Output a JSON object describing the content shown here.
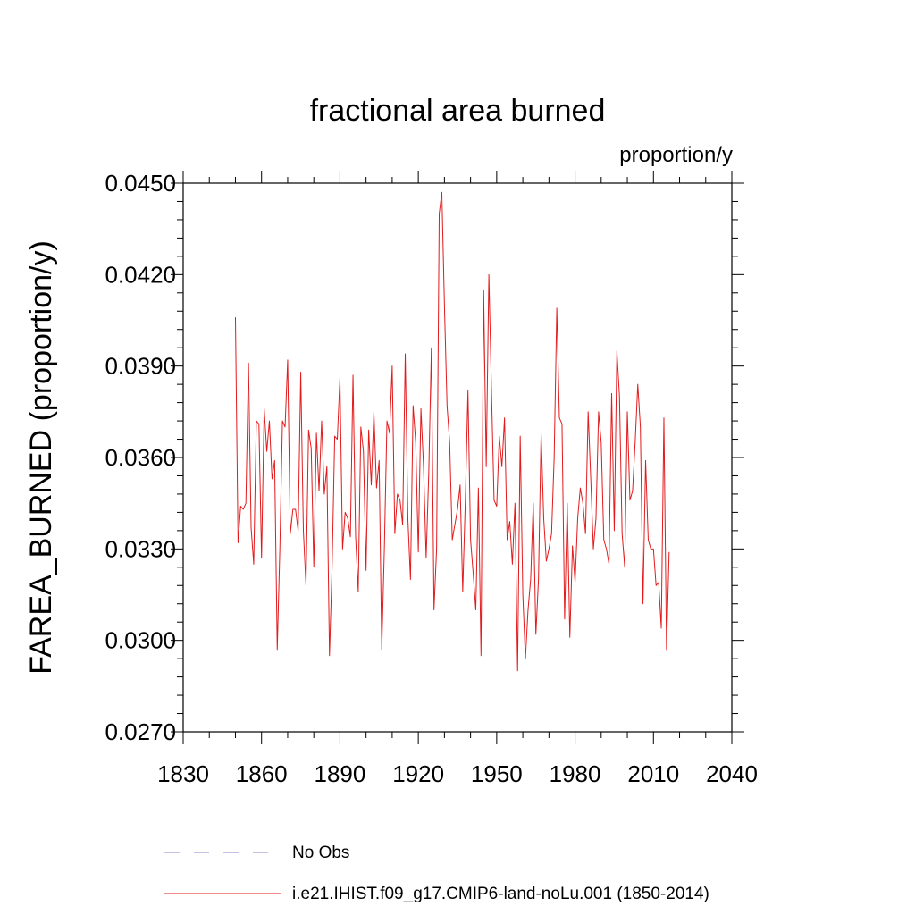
{
  "chart_data": {
    "type": "line",
    "title": "fractional area burned",
    "units": "proportion/y",
    "ylabel": "FAREA_BURNED  (proportion/y)",
    "xlabel": "",
    "xlim": [
      1830,
      2040
    ],
    "ylim": [
      0.027,
      0.045
    ],
    "x_ticks": [
      1830,
      1860,
      1890,
      1920,
      1950,
      1980,
      2010,
      2040
    ],
    "x_tick_labels": [
      "1830",
      "1860",
      "1890",
      "1920",
      "1950",
      "1980",
      "2010",
      "2040"
    ],
    "y_ticks": [
      0.027,
      0.03,
      0.033,
      0.036,
      0.039,
      0.042,
      0.045
    ],
    "y_tick_labels": [
      "0.0270",
      "0.0300",
      "0.0330",
      "0.0360",
      "0.0390",
      "0.0420",
      "0.0450"
    ],
    "grid": false,
    "legend_position": "bottom",
    "legend": [
      {
        "label": "No Obs",
        "color": "#8a84c8",
        "style": "dashed"
      },
      {
        "label": "i.e21.IHIST.f09_g17.CMIP6-land-noLu.001 (1850-2014)",
        "color": "#e31a1c",
        "style": "solid"
      }
    ],
    "series": [
      {
        "name": "i.e21.IHIST.f09_g17.CMIP6-land-noLu.001 (1850-2014)",
        "color": "#e31a1c",
        "x_start": 1850,
        "x_step": 1,
        "values": [
          0.0406,
          0.0332,
          0.0344,
          0.0343,
          0.0345,
          0.0391,
          0.0337,
          0.0325,
          0.0372,
          0.0371,
          0.0327,
          0.0376,
          0.0362,
          0.0372,
          0.0353,
          0.0359,
          0.0297,
          0.033,
          0.0372,
          0.037,
          0.0392,
          0.0335,
          0.0343,
          0.0343,
          0.0336,
          0.0388,
          0.0336,
          0.0318,
          0.0369,
          0.0363,
          0.0324,
          0.0368,
          0.0349,
          0.0372,
          0.0348,
          0.0357,
          0.0295,
          0.0324,
          0.0367,
          0.0366,
          0.0386,
          0.033,
          0.0342,
          0.034,
          0.0334,
          0.0387,
          0.0334,
          0.0316,
          0.037,
          0.0362,
          0.0323,
          0.0369,
          0.0351,
          0.0375,
          0.035,
          0.0359,
          0.0297,
          0.033,
          0.0372,
          0.0368,
          0.039,
          0.0335,
          0.0348,
          0.0346,
          0.0338,
          0.0394,
          0.034,
          0.032,
          0.0377,
          0.0365,
          0.0329,
          0.0376,
          0.0357,
          0.0327,
          0.0355,
          0.0396,
          0.031,
          0.033,
          0.044,
          0.0447,
          0.041,
          0.0377,
          0.0365,
          0.0333,
          0.0338,
          0.0343,
          0.0351,
          0.0316,
          0.0346,
          0.0382,
          0.0333,
          0.0322,
          0.031,
          0.035,
          0.0295,
          0.0415,
          0.0357,
          0.042,
          0.0382,
          0.0346,
          0.0344,
          0.0367,
          0.0357,
          0.0373,
          0.0333,
          0.0339,
          0.0325,
          0.0345,
          0.029,
          0.0367,
          0.0315,
          0.0294,
          0.031,
          0.032,
          0.0345,
          0.0302,
          0.032,
          0.0368,
          0.034,
          0.0326,
          0.033,
          0.0335,
          0.036,
          0.0409,
          0.0373,
          0.0371,
          0.0307,
          0.0345,
          0.0301,
          0.0331,
          0.0319,
          0.034,
          0.035,
          0.0345,
          0.0335,
          0.0375,
          0.0353,
          0.033,
          0.034,
          0.0375,
          0.0365,
          0.0333,
          0.033,
          0.0325,
          0.0381,
          0.0336,
          0.0395,
          0.038,
          0.0335,
          0.0324,
          0.0375,
          0.0346,
          0.0349,
          0.0365,
          0.0384,
          0.037,
          0.0312,
          0.0359,
          0.0333,
          0.033,
          0.033,
          0.0318,
          0.0319,
          0.0304,
          0.0373,
          0.0297,
          0.0329
        ]
      }
    ]
  }
}
